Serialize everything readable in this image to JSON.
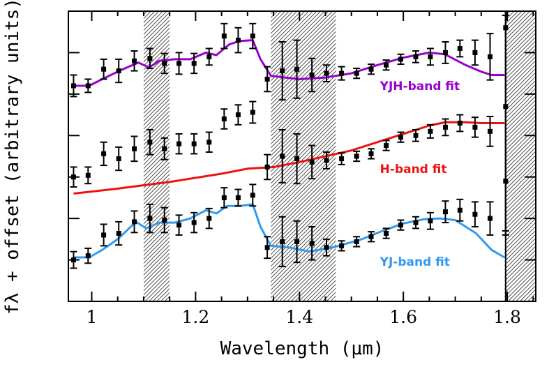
{
  "chart_data": {
    "type": "line",
    "title": "",
    "xlabel": "Wavelength (μm)",
    "ylabel": "fλ + offset (arbitrary units)",
    "xlim": [
      0.955,
      1.855
    ],
    "ylim": [
      0.0,
      3.5
    ],
    "x_ticks": [
      1.0,
      1.2,
      1.4,
      1.6,
      1.8
    ],
    "x_tick_labels": [
      "1",
      "1.2",
      "1.4",
      "1.6",
      "1.8"
    ],
    "y_ticks": [
      0.5,
      1.0,
      1.5,
      2.0,
      2.5,
      3.0
    ],
    "shaded_regions": [
      [
        1.1,
        1.15
      ],
      [
        1.345,
        1.47
      ],
      [
        1.795,
        1.855
      ]
    ],
    "fits": [
      {
        "label": "YJH-band fit",
        "color": "#9900cc",
        "label_x": 1.555,
        "label_y": 2.55,
        "x": [
          0.965,
          0.995,
          1.02,
          1.06,
          1.09,
          1.11,
          1.13,
          1.16,
          1.19,
          1.22,
          1.24,
          1.265,
          1.285,
          1.31,
          1.325,
          1.345,
          1.4,
          1.45,
          1.5,
          1.55,
          1.6,
          1.65,
          1.68,
          1.72,
          1.75,
          1.77,
          1.795
        ],
        "y": [
          2.6,
          2.6,
          2.68,
          2.8,
          2.88,
          2.82,
          2.9,
          2.92,
          2.92,
          3.0,
          2.97,
          3.1,
          3.14,
          3.15,
          2.92,
          2.72,
          2.68,
          2.7,
          2.75,
          2.85,
          2.94,
          3.0,
          2.98,
          2.85,
          2.77,
          2.73,
          2.73
        ]
      },
      {
        "label": "H-band fit",
        "color": "#ee1111",
        "label_x": 1.555,
        "label_y": 1.55,
        "x": [
          0.965,
          1.05,
          1.15,
          1.25,
          1.3,
          1.35,
          1.4,
          1.45,
          1.5,
          1.55,
          1.6,
          1.65,
          1.68,
          1.72,
          1.75,
          1.795
        ],
        "y": [
          1.3,
          1.36,
          1.44,
          1.54,
          1.6,
          1.62,
          1.68,
          1.75,
          1.82,
          1.92,
          2.02,
          2.12,
          2.16,
          2.16,
          2.15,
          2.15
        ]
      },
      {
        "label": "YJ-band fit",
        "color": "#3399ee",
        "label_x": 1.555,
        "label_y": 0.43,
        "x": [
          0.965,
          0.995,
          1.02,
          1.05,
          1.085,
          1.105,
          1.13,
          1.16,
          1.19,
          1.22,
          1.24,
          1.26,
          1.285,
          1.31,
          1.325,
          1.345,
          1.38,
          1.42,
          1.47,
          1.52,
          1.56,
          1.6,
          1.64,
          1.67,
          1.7,
          1.74,
          1.77,
          1.795
        ],
        "y": [
          0.53,
          0.53,
          0.62,
          0.75,
          0.96,
          0.88,
          0.95,
          0.95,
          1.0,
          1.1,
          1.06,
          1.15,
          1.15,
          1.17,
          0.9,
          0.67,
          0.65,
          0.6,
          0.66,
          0.75,
          0.85,
          0.94,
          0.99,
          1.0,
          0.98,
          0.82,
          0.62,
          0.53
        ]
      }
    ],
    "data_series": [
      {
        "name": "",
        "x": [
          0.965,
          0.993,
          1.023,
          1.052,
          1.082,
          1.112,
          1.14,
          1.168,
          1.197,
          1.226,
          1.255,
          1.282,
          1.31,
          1.338,
          1.367,
          1.395,
          1.424,
          1.452,
          1.481,
          1.51,
          1.538,
          1.567,
          1.595,
          1.624,
          1.652,
          1.681,
          1.709,
          1.738,
          1.767,
          1.797
        ],
        "y": [
          2.6,
          2.6,
          2.8,
          2.78,
          2.9,
          2.93,
          2.87,
          2.87,
          2.87,
          2.95,
          3.2,
          3.15,
          3.2,
          2.68,
          2.78,
          2.8,
          2.73,
          2.75,
          2.75,
          2.75,
          2.8,
          2.85,
          2.92,
          2.95,
          2.95,
          3.0,
          3.05,
          3.0,
          2.95,
          3.3
        ],
        "yerr": [
          0.13,
          0.08,
          0.12,
          0.14,
          0.12,
          0.12,
          0.12,
          0.13,
          0.12,
          0.1,
          0.15,
          0.15,
          0.15,
          0.15,
          0.35,
          0.35,
          0.2,
          0.1,
          0.08,
          0.06,
          0.06,
          0.06,
          0.06,
          0.07,
          0.1,
          0.13,
          0.1,
          0.15,
          0.28,
          2.5
        ]
      },
      {
        "name": "",
        "x": [
          0.965,
          0.993,
          1.023,
          1.052,
          1.082,
          1.112,
          1.14,
          1.168,
          1.197,
          1.226,
          1.255,
          1.282,
          1.31,
          1.338,
          1.367,
          1.395,
          1.424,
          1.452,
          1.481,
          1.51,
          1.538,
          1.567,
          1.595,
          1.624,
          1.652,
          1.681,
          1.709,
          1.738,
          1.767,
          1.797
        ],
        "y": [
          1.5,
          1.52,
          1.78,
          1.72,
          1.84,
          1.92,
          1.84,
          1.9,
          1.9,
          1.92,
          2.2,
          2.25,
          2.28,
          1.62,
          1.75,
          1.72,
          1.68,
          1.7,
          1.72,
          1.75,
          1.78,
          1.88,
          1.98,
          2.0,
          2.05,
          2.1,
          2.15,
          2.1,
          2.05,
          2.35
        ],
        "yerr": [
          0.12,
          0.1,
          0.14,
          0.14,
          0.15,
          0.15,
          0.13,
          0.12,
          0.12,
          0.12,
          0.12,
          0.12,
          0.13,
          0.15,
          0.32,
          0.3,
          0.2,
          0.1,
          0.07,
          0.06,
          0.06,
          0.06,
          0.06,
          0.07,
          0.08,
          0.1,
          0.1,
          0.12,
          0.18,
          1.5
        ]
      },
      {
        "name": "",
        "x": [
          0.965,
          0.993,
          1.023,
          1.052,
          1.082,
          1.112,
          1.14,
          1.168,
          1.197,
          1.226,
          1.255,
          1.282,
          1.31,
          1.338,
          1.367,
          1.395,
          1.424,
          1.452,
          1.481,
          1.51,
          1.538,
          1.567,
          1.595,
          1.624,
          1.652,
          1.681,
          1.709,
          1.738,
          1.767,
          1.797
        ],
        "y": [
          0.5,
          0.55,
          0.8,
          0.82,
          0.96,
          1.0,
          0.98,
          0.92,
          0.95,
          1.0,
          1.25,
          1.25,
          1.28,
          0.65,
          0.72,
          0.72,
          0.7,
          0.65,
          0.67,
          0.72,
          0.78,
          0.82,
          0.92,
          0.95,
          0.97,
          1.08,
          1.1,
          1.05,
          1.0,
          1.45
        ],
        "yerr": [
          0.1,
          0.09,
          0.13,
          0.14,
          0.13,
          0.17,
          0.15,
          0.12,
          0.12,
          0.12,
          0.12,
          0.1,
          0.13,
          0.13,
          0.3,
          0.25,
          0.2,
          0.1,
          0.06,
          0.06,
          0.06,
          0.06,
          0.06,
          0.07,
          0.1,
          0.13,
          0.13,
          0.15,
          0.2,
          2.0
        ]
      }
    ],
    "grid": false,
    "legend": "none"
  }
}
